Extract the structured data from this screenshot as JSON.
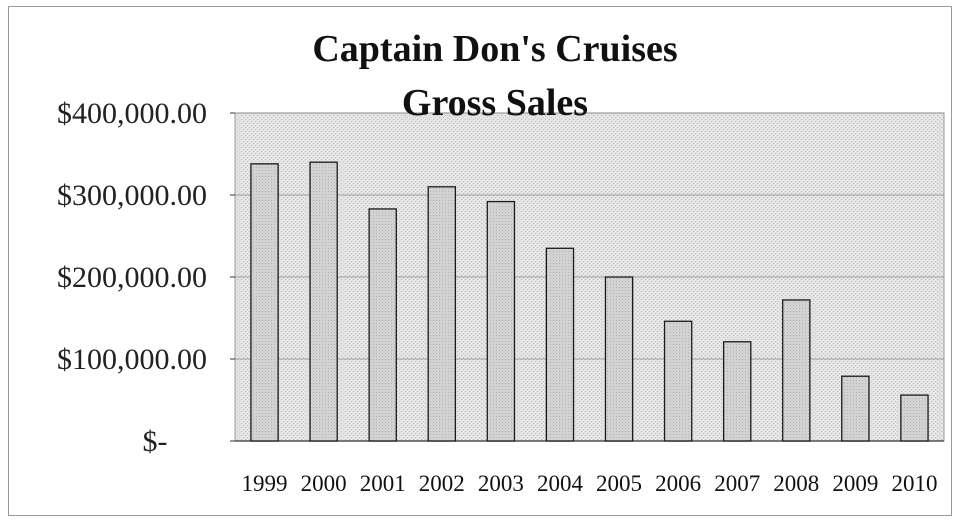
{
  "chart_data": {
    "type": "bar",
    "title": [
      "Captain Don's Cruises",
      "Gross Sales"
    ],
    "categories": [
      "1999",
      "2000",
      "2001",
      "2002",
      "2003",
      "2004",
      "2005",
      "2006",
      "2007",
      "2008",
      "2009",
      "2010"
    ],
    "values": [
      338000,
      340000,
      283000,
      310000,
      292000,
      235000,
      200000,
      146000,
      121000,
      172000,
      79000,
      56000
    ],
    "ylim": [
      0,
      400000
    ],
    "yticks": [
      0,
      100000,
      200000,
      300000,
      400000
    ],
    "ytick_labels": [
      "$-",
      "$100,000.00",
      "$200,000.00",
      "$300,000.00",
      "$400,000.00"
    ],
    "xlabel": "",
    "ylabel": "",
    "grid": true,
    "legend": "none",
    "colors": {
      "bar_fill": "#cfcfcf",
      "bar_stroke": "#1a1a1a",
      "plot_bg": "#e4e4e4",
      "gridline": "#8a8a8a"
    }
  }
}
